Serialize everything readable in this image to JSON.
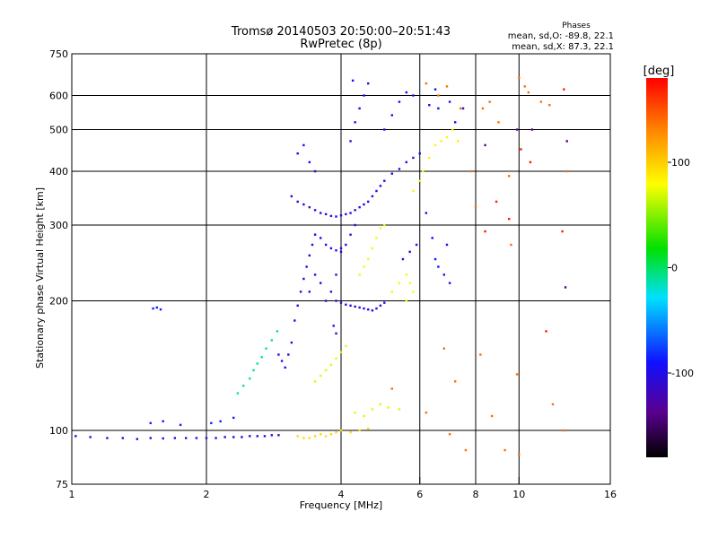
{
  "chart_data": {
    "type": "scatter",
    "title": "Tromsø 20140503 20:50:00–20:51:43",
    "subtitle": "RwPretec (8p)",
    "xlabel": "Frequency [MHz]",
    "ylabel": "Stationary phase Virtual Height [km]",
    "x_scale": "log",
    "y_scale": "log",
    "xlim": [
      1,
      16
    ],
    "ylim": [
      75,
      750
    ],
    "x_ticks": [
      1,
      2,
      4,
      6,
      8,
      10,
      16
    ],
    "y_ticks": [
      75,
      100,
      200,
      300,
      400,
      500,
      600,
      750
    ],
    "x_gridlines": [
      2,
      4,
      6,
      8,
      10
    ],
    "y_gridlines": [
      100,
      200,
      300,
      400,
      500,
      600
    ],
    "grid": true,
    "stats": {
      "header": "Phases",
      "line_o": "mean, sd,O: -89.8, 22.1",
      "line_x": "mean, sd,X: 87.3, 22.1"
    },
    "colorbar": {
      "label": "[deg]",
      "range": [
        -180,
        180
      ],
      "ticks": [
        100,
        0,
        -100
      ]
    },
    "clusters": [
      {
        "phase": -110,
        "points": [
          [
            1.02,
            97
          ],
          [
            1.1,
            96.5
          ],
          [
            1.2,
            96
          ],
          [
            1.3,
            96
          ],
          [
            1.4,
            95.5
          ],
          [
            1.5,
            96
          ],
          [
            1.6,
            95.8
          ],
          [
            1.7,
            96
          ],
          [
            1.8,
            96
          ],
          [
            1.9,
            96
          ],
          [
            2.0,
            96
          ],
          [
            2.1,
            96
          ],
          [
            2.2,
            96.5
          ],
          [
            2.3,
            96.5
          ],
          [
            2.4,
            96.5
          ],
          [
            2.5,
            97
          ],
          [
            2.6,
            97
          ],
          [
            2.7,
            97
          ],
          [
            2.8,
            97.5
          ],
          [
            2.9,
            97.5
          ]
        ]
      },
      {
        "phase": -95,
        "points": [
          [
            1.52,
            192
          ],
          [
            1.55,
            193
          ],
          [
            1.58,
            191
          ],
          [
            1.5,
            104
          ],
          [
            1.6,
            105
          ],
          [
            1.75,
            103
          ],
          [
            2.05,
            104
          ],
          [
            2.15,
            105
          ],
          [
            2.3,
            107
          ]
        ]
      },
      {
        "phase": -20,
        "points": [
          [
            2.35,
            122
          ],
          [
            2.42,
            127
          ],
          [
            2.5,
            132
          ],
          [
            2.55,
            138
          ],
          [
            2.6,
            143
          ],
          [
            2.66,
            148
          ],
          [
            2.72,
            155
          ],
          [
            2.8,
            162
          ],
          [
            2.88,
            170
          ]
        ]
      },
      {
        "phase": -110,
        "points": [
          [
            2.9,
            150
          ],
          [
            2.95,
            145
          ],
          [
            3.0,
            140
          ],
          [
            3.05,
            150
          ],
          [
            3.1,
            160
          ],
          [
            3.15,
            180
          ],
          [
            3.2,
            195
          ],
          [
            3.25,
            210
          ],
          [
            3.3,
            225
          ],
          [
            3.35,
            240
          ],
          [
            3.4,
            255
          ],
          [
            3.45,
            270
          ],
          [
            3.5,
            285
          ],
          [
            3.4,
            210
          ],
          [
            3.5,
            230
          ],
          [
            3.6,
            220
          ],
          [
            3.7,
            200
          ],
          [
            3.8,
            210
          ],
          [
            3.9,
            230
          ],
          [
            4.0,
            260
          ],
          [
            3.85,
            175
          ],
          [
            3.9,
            168
          ]
        ]
      },
      {
        "phase": -110,
        "points": [
          [
            3.1,
            350
          ],
          [
            3.2,
            340
          ],
          [
            3.3,
            335
          ],
          [
            3.4,
            330
          ],
          [
            3.5,
            325
          ],
          [
            3.6,
            320
          ],
          [
            3.7,
            318
          ],
          [
            3.8,
            315
          ],
          [
            3.9,
            314
          ],
          [
            4.0,
            316
          ],
          [
            4.1,
            318
          ],
          [
            4.2,
            320
          ],
          [
            4.3,
            325
          ],
          [
            4.4,
            330
          ],
          [
            4.5,
            335
          ],
          [
            4.6,
            340
          ],
          [
            4.7,
            350
          ],
          [
            4.8,
            360
          ],
          [
            4.9,
            370
          ],
          [
            5.0,
            380
          ],
          [
            5.2,
            395
          ],
          [
            5.4,
            405
          ],
          [
            5.6,
            420
          ],
          [
            5.8,
            430
          ],
          [
            6.0,
            440
          ]
        ]
      },
      {
        "phase": -110,
        "points": [
          [
            3.6,
            280
          ],
          [
            3.7,
            270
          ],
          [
            3.8,
            265
          ],
          [
            3.9,
            262
          ],
          [
            4.0,
            265
          ],
          [
            4.1,
            270
          ],
          [
            4.2,
            285
          ],
          [
            4.3,
            300
          ]
        ]
      },
      {
        "phase": -105,
        "points": [
          [
            3.2,
            440
          ],
          [
            3.3,
            460
          ],
          [
            3.4,
            420
          ],
          [
            3.5,
            400
          ],
          [
            4.2,
            470
          ],
          [
            4.3,
            520
          ],
          [
            4.4,
            560
          ],
          [
            4.5,
            600
          ],
          [
            4.6,
            640
          ],
          [
            4.25,
            650
          ],
          [
            5.0,
            500
          ],
          [
            5.2,
            540
          ],
          [
            5.4,
            580
          ],
          [
            5.6,
            610
          ],
          [
            5.8,
            600
          ],
          [
            6.3,
            570
          ],
          [
            6.5,
            620
          ],
          [
            6.6,
            560
          ],
          [
            7.0,
            580
          ],
          [
            7.2,
            520
          ],
          [
            7.5,
            560
          ]
        ]
      },
      {
        "phase": -110,
        "points": [
          [
            3.9,
            200
          ],
          [
            4.0,
            198
          ],
          [
            4.1,
            196
          ],
          [
            4.2,
            195
          ],
          [
            4.3,
            194
          ],
          [
            4.4,
            193
          ],
          [
            4.5,
            192
          ],
          [
            4.6,
            191
          ],
          [
            4.7,
            190
          ],
          [
            4.8,
            192
          ],
          [
            4.9,
            195
          ],
          [
            5.0,
            198
          ]
        ]
      },
      {
        "phase": -100,
        "points": [
          [
            5.5,
            250
          ],
          [
            5.7,
            260
          ],
          [
            5.9,
            270
          ],
          [
            6.5,
            250
          ],
          [
            6.6,
            240
          ],
          [
            6.8,
            230
          ],
          [
            7.0,
            220
          ],
          [
            6.9,
            270
          ],
          [
            6.4,
            280
          ],
          [
            6.2,
            320
          ]
        ]
      },
      {
        "phase": 95,
        "points": [
          [
            3.2,
            97
          ],
          [
            3.3,
            96
          ],
          [
            3.4,
            96
          ],
          [
            3.5,
            97
          ],
          [
            3.6,
            98
          ],
          [
            3.7,
            97
          ],
          [
            3.8,
            98
          ],
          [
            3.9,
            99
          ],
          [
            4.0,
            100
          ],
          [
            4.2,
            99
          ],
          [
            4.4,
            100
          ],
          [
            4.6,
            101
          ]
        ]
      },
      {
        "phase": 70,
        "points": [
          [
            3.5,
            130
          ],
          [
            3.6,
            134
          ],
          [
            3.7,
            138
          ],
          [
            3.8,
            142
          ],
          [
            3.9,
            147
          ],
          [
            4.0,
            152
          ],
          [
            4.1,
            157
          ],
          [
            4.3,
            110
          ],
          [
            4.5,
            108
          ],
          [
            4.7,
            112
          ],
          [
            4.9,
            115
          ],
          [
            5.1,
            113
          ],
          [
            5.4,
            112
          ]
        ]
      },
      {
        "phase": 75,
        "points": [
          [
            4.4,
            230
          ],
          [
            4.5,
            240
          ],
          [
            4.6,
            250
          ],
          [
            4.7,
            265
          ],
          [
            4.8,
            280
          ],
          [
            4.9,
            295
          ],
          [
            5.0,
            300
          ],
          [
            5.2,
            210
          ],
          [
            5.4,
            220
          ],
          [
            5.6,
            230
          ],
          [
            5.7,
            220
          ],
          [
            5.8,
            210
          ],
          [
            5.6,
            200
          ]
        ]
      },
      {
        "phase": 85,
        "points": [
          [
            5.8,
            360
          ],
          [
            6.0,
            380
          ],
          [
            6.1,
            400
          ],
          [
            6.3,
            430
          ],
          [
            6.5,
            460
          ],
          [
            6.7,
            470
          ],
          [
            6.9,
            480
          ],
          [
            7.1,
            500
          ],
          [
            7.3,
            470
          ]
        ]
      },
      {
        "phase": 140,
        "points": [
          [
            6.2,
            640
          ],
          [
            6.6,
            600
          ],
          [
            6.9,
            630
          ],
          [
            7.4,
            560
          ],
          [
            7.8,
            400
          ],
          [
            8.0,
            330
          ],
          [
            8.3,
            560
          ],
          [
            8.6,
            580
          ],
          [
            9.0,
            520
          ],
          [
            9.5,
            390
          ],
          [
            10.0,
            660
          ],
          [
            10.3,
            630
          ],
          [
            11.2,
            580
          ],
          [
            12.8,
            400
          ],
          [
            9.6,
            270
          ],
          [
            8.2,
            150
          ],
          [
            9.3,
            90
          ],
          [
            10.0,
            88
          ],
          [
            11.9,
            115
          ],
          [
            8.7,
            108
          ],
          [
            7.2,
            130
          ],
          [
            6.8,
            155
          ],
          [
            5.2,
            125
          ],
          [
            6.2,
            110
          ],
          [
            7.0,
            98
          ],
          [
            7.6,
            90
          ],
          [
            9.9,
            135
          ],
          [
            12.6,
            100
          ],
          [
            10.5,
            610
          ],
          [
            11.7,
            570
          ]
        ]
      },
      {
        "phase": 170,
        "points": [
          [
            8.4,
            290
          ],
          [
            8.9,
            340
          ],
          [
            9.5,
            310
          ],
          [
            10.1,
            450
          ],
          [
            10.6,
            420
          ],
          [
            12.5,
            290
          ],
          [
            11.5,
            170
          ],
          [
            12.6,
            620
          ]
        ]
      },
      {
        "phase": -140,
        "points": [
          [
            12.7,
            215
          ],
          [
            12.8,
            470
          ],
          [
            8.4,
            460
          ],
          [
            9.9,
            500
          ],
          [
            10.7,
            500
          ]
        ]
      }
    ]
  }
}
